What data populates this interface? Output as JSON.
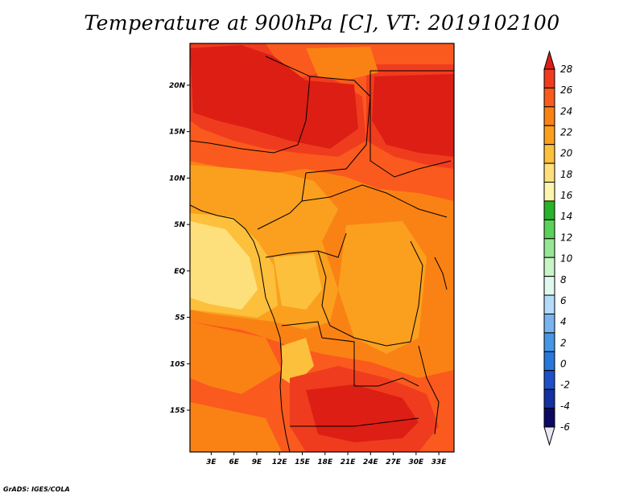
{
  "title": "Temperature at 900hPa [C], VT: 2019102100",
  "credit": "GrADS: IGES/COLA",
  "map": {
    "lat_labels": [
      "20N",
      "15N",
      "10N",
      "5N",
      "EQ",
      "5S",
      "10S",
      "15S"
    ],
    "lon_labels": [
      "3E",
      "6E",
      "9E",
      "12E",
      "15E",
      "18E",
      "21E",
      "24E",
      "27E",
      "30E",
      "33E"
    ],
    "lat_range": [
      -19.5,
      24.5
    ],
    "lon_range": [
      0.2,
      35.0
    ]
  },
  "colorbar": {
    "levels": [
      "28",
      "26",
      "24",
      "22",
      "20",
      "18",
      "16",
      "14",
      "12",
      "10",
      "8",
      "6",
      "4",
      "2",
      "0",
      "-2",
      "-4",
      "-6"
    ],
    "colors": [
      "#dc1e14",
      "#f03c1e",
      "#fa5a1e",
      "#fa8214",
      "#faa01e",
      "#fcc03c",
      "#fde07c",
      "#fcf5ac",
      "#28b428",
      "#5ad25a",
      "#96e696",
      "#c8f5c8",
      "#e0f8f0",
      "#b4dcfa",
      "#78b4f0",
      "#4696e6",
      "#2878dc",
      "#1e50c8",
      "#1432a0",
      "#0a0a64",
      "#e6e6f5"
    ]
  }
}
